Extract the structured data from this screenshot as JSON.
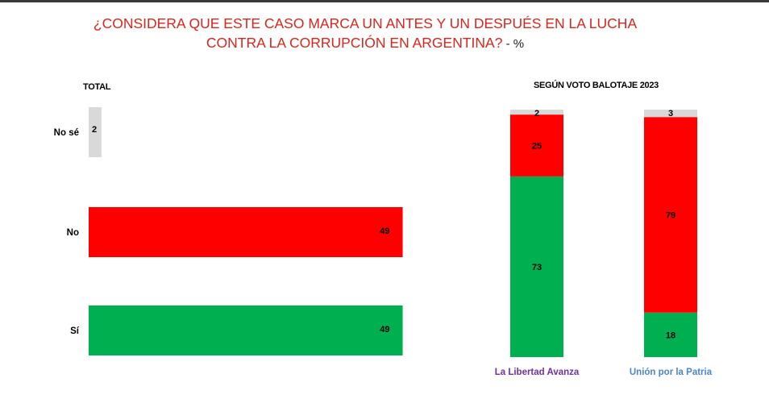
{
  "title": {
    "main_line1": "¿CONSIDERA QUE ESTE CASO MARCA UN ANTES Y UN DESPUÉS EN LA LUCHA",
    "main_line2": "CONTRA LA CORRUPCIÓN EN ARGENTINA?",
    "suffix": " - %"
  },
  "chart_data": [
    {
      "type": "bar",
      "orientation": "horizontal",
      "title": "TOTAL",
      "categories": [
        "No sé",
        "No",
        "Sí"
      ],
      "values": [
        2,
        49,
        49
      ],
      "colors": [
        "#d9d9d9",
        "#ff0000",
        "#00b050"
      ],
      "xlim": [
        0,
        100
      ]
    },
    {
      "type": "bar",
      "stacked": true,
      "title": "SEGÚN VOTO BALOTAJE 2023",
      "categories": [
        "La Libertad Avanza",
        "Unión por la Patria"
      ],
      "category_colors": [
        "#7030a0",
        "#4a86c8"
      ],
      "series": [
        {
          "values": [
            73,
            18
          ],
          "color": "#00b050"
        },
        {
          "values": [
            25,
            79
          ],
          "color": "#ff0000"
        },
        {
          "values": [
            2,
            3
          ],
          "color": "#d9d9d9"
        }
      ],
      "ylim": [
        0,
        100
      ]
    }
  ]
}
